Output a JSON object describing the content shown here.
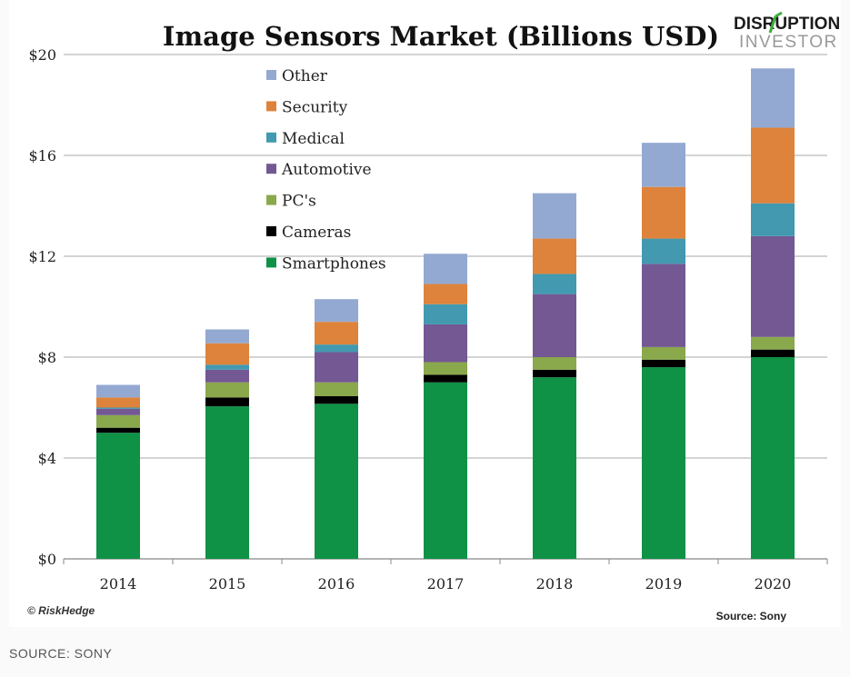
{
  "chart_data": {
    "type": "bar",
    "stacked": true,
    "title": "Image Sensors Market (Billions USD)",
    "xlabel": "",
    "ylabel": "",
    "ylim": [
      0,
      20
    ],
    "yticks": [
      "$0",
      "$4",
      "$8",
      "$12",
      "$16",
      "$20"
    ],
    "ytick_values": [
      0,
      4,
      8,
      12,
      16,
      20
    ],
    "grid": true,
    "legend_position": "top-left",
    "categories": [
      "2014",
      "2015",
      "2016",
      "2017",
      "2018",
      "2019",
      "2020"
    ],
    "series": [
      {
        "name": "Smartphones",
        "color": "#0f9146",
        "values": [
          5.0,
          6.05,
          6.15,
          7.0,
          7.2,
          7.6,
          8.0
        ]
      },
      {
        "name": "Cameras",
        "color": "#000000",
        "values": [
          0.2,
          0.35,
          0.3,
          0.3,
          0.3,
          0.3,
          0.3
        ]
      },
      {
        "name": "PC's",
        "color": "#8aa84c",
        "values": [
          0.5,
          0.6,
          0.55,
          0.5,
          0.5,
          0.5,
          0.5
        ]
      },
      {
        "name": "Automotive",
        "color": "#735893",
        "values": [
          0.25,
          0.5,
          1.2,
          1.5,
          2.5,
          3.3,
          4.0
        ]
      },
      {
        "name": "Medical",
        "color": "#4299b0",
        "values": [
          0.05,
          0.2,
          0.3,
          0.8,
          0.8,
          1.0,
          1.3
        ]
      },
      {
        "name": "Security",
        "color": "#de833b",
        "values": [
          0.4,
          0.85,
          0.9,
          0.8,
          1.4,
          2.05,
          3.0
        ]
      },
      {
        "name": "Other",
        "color": "#94a9d2",
        "values": [
          0.5,
          0.55,
          0.9,
          1.2,
          1.8,
          1.75,
          2.35
        ]
      }
    ],
    "credit": "© RiskHedge",
    "source_note": "Source: Sony"
  },
  "logo": {
    "line1": "DISRUPTION",
    "line2": "INVESTOR"
  },
  "caption": "SOURCE: SONY"
}
